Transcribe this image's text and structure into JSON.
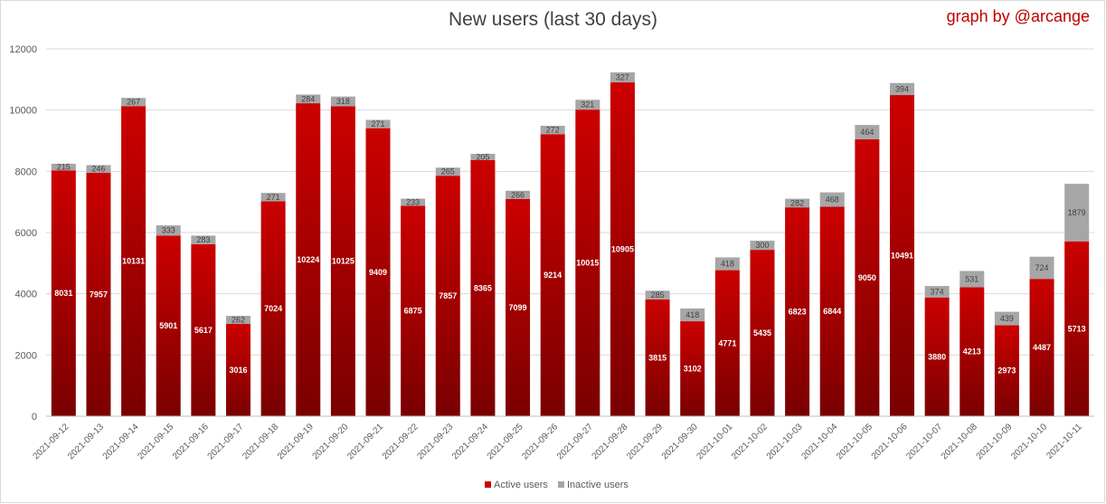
{
  "header": {
    "title": "New users (last 30 days)",
    "credit": "graph by @arcange"
  },
  "colors": {
    "active_top": "#cc0000",
    "active_bottom": "#7a0000",
    "inactive": "#a6a6a6",
    "credit": "#c00000"
  },
  "chart_data": {
    "type": "bar",
    "stacked": true,
    "title": "New users (last 30 days)",
    "ylim": [
      0,
      12000
    ],
    "yticks": [
      0,
      2000,
      4000,
      6000,
      8000,
      10000,
      12000
    ],
    "grid": true,
    "legend_position": "bottom",
    "categories": [
      "2021-09-12",
      "2021-09-13",
      "2021-09-14",
      "2021-09-15",
      "2021-09-16",
      "2021-09-17",
      "2021-09-18",
      "2021-09-19",
      "2021-09-20",
      "2021-09-21",
      "2021-09-22",
      "2021-09-23",
      "2021-09-24",
      "2021-09-25",
      "2021-09-26",
      "2021-09-27",
      "2021-09-28",
      "2021-09-29",
      "2021-09-30",
      "2021-10-01",
      "2021-10-02",
      "2021-10-03",
      "2021-10-04",
      "2021-10-05",
      "2021-10-06",
      "2021-10-07",
      "2021-10-08",
      "2021-10-09",
      "2021-10-10",
      "2021-10-11"
    ],
    "series": [
      {
        "name": "Active users",
        "values": [
          8031,
          7957,
          10131,
          5901,
          5617,
          3016,
          7024,
          10224,
          10125,
          9409,
          6875,
          7857,
          8365,
          7099,
          9214,
          10015,
          10905,
          3815,
          3102,
          4771,
          5435,
          6823,
          6844,
          9050,
          10491,
          3880,
          4213,
          2973,
          4487,
          5713
        ]
      },
      {
        "name": "Inactive users",
        "values": [
          215,
          246,
          267,
          333,
          283,
          262,
          271,
          284,
          318,
          271,
          233,
          265,
          205,
          266,
          272,
          321,
          327,
          285,
          418,
          418,
          300,
          282,
          468,
          464,
          394,
          374,
          531,
          439,
          724,
          1879
        ]
      }
    ]
  }
}
